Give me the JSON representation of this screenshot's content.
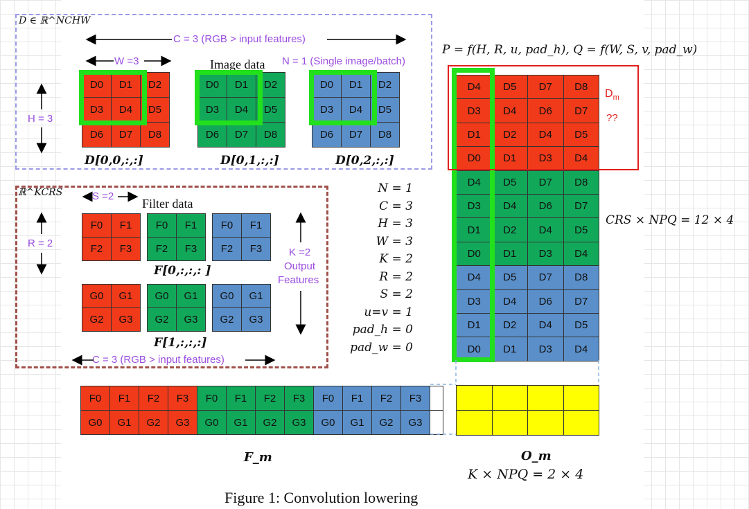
{
  "top_box": {
    "math_label": "D ∈ ℝ^NCHW",
    "c_label": "C = 3 (RGB > input features)",
    "w_label": "W =3",
    "h_label": "H = 3",
    "image_title": "Image data",
    "n_label": "N = 1 (Single image/batch)",
    "captions": [
      "D[0,0,:,:]",
      "D[0,1,:,:]",
      "D[0,2,:,:]"
    ]
  },
  "image_grid": [
    [
      "D0",
      "D1",
      "D2"
    ],
    [
      "D3",
      "D4",
      "D5"
    ],
    [
      "D6",
      "D7",
      "D8"
    ]
  ],
  "filter_box": {
    "math_label": "ℝ^KCRS",
    "s_label": "S =2",
    "r_label": "R = 2",
    "title": "Filter data",
    "k_label_1": "K =2",
    "k_label_2": "Output",
    "k_label_3": "Features",
    "c_label": "C = 3 (RGB > input features)",
    "caption_f0": "F[0,:,:,: ]",
    "caption_f1": "F[1,:,:,:]"
  },
  "filter_f": [
    [
      "F0",
      "F1"
    ],
    [
      "F2",
      "F3"
    ]
  ],
  "filter_g": [
    [
      "G0",
      "G1"
    ],
    [
      "G2",
      "G3"
    ]
  ],
  "params": [
    "N = 1",
    "C = 3",
    "H = 3",
    "W = 3",
    "K = 2",
    "R = 2",
    "S = 2",
    "u=v = 1",
    "pad_h = 0",
    "pad_w = 0"
  ],
  "pq_formula": "P = f(H, R, u, pad_h), Q = f(W, S, v, pad_w)",
  "dm": {
    "label": "D",
    "subscript": "m",
    "note": "??"
  },
  "dm_blocks": [
    [
      "D4",
      "D5",
      "D7",
      "D8"
    ],
    [
      "D3",
      "D4",
      "D6",
      "D7"
    ],
    [
      "D1",
      "D2",
      "D4",
      "D5"
    ],
    [
      "D0",
      "D1",
      "D3",
      "D4"
    ]
  ],
  "crs_formula": "CRS × NPQ = 12 × 4",
  "fm_rows": [
    [
      "F0",
      "F1",
      "F2",
      "F3",
      "F0",
      "F1",
      "F2",
      "F3",
      "F0",
      "F1",
      "F2",
      "F3"
    ],
    [
      "G0",
      "G1",
      "G2",
      "G3",
      "G0",
      "G1",
      "G2",
      "G3",
      "G0",
      "G1",
      "G2",
      "G3"
    ]
  ],
  "fm_label": "F_m",
  "om_label": "O_m",
  "knpq_formula": "K × NPQ = 2 × 4",
  "figure_caption": "Figure 1: Convolution lowering",
  "colors": {
    "red": "#f03a1a",
    "green": "#12a85a",
    "blue": "#5b8fc9",
    "yellow": "#ffff00",
    "highlight": "#22e01c"
  }
}
